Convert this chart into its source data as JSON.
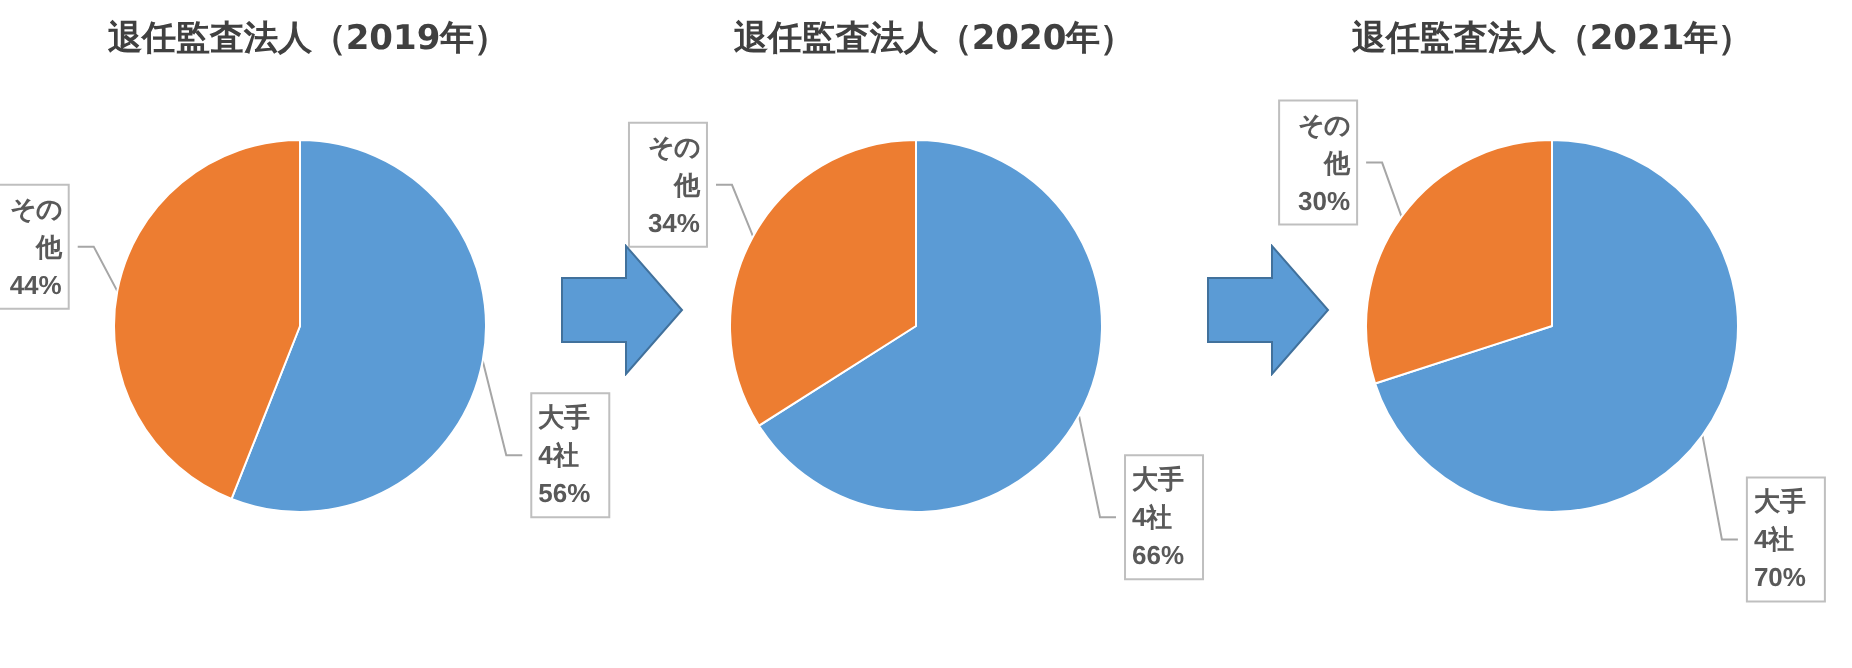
{
  "chart_data": [
    {
      "type": "pie",
      "title": "退任監査法人（2019年）",
      "categories": [
        "大手4社",
        "その他"
      ],
      "values": [
        56,
        44
      ],
      "colors": [
        "#5b9bd5",
        "#ed7d31"
      ],
      "value_labels": [
        "56%",
        "44%"
      ]
    },
    {
      "type": "pie",
      "title": "退任監査法人（2020年）",
      "categories": [
        "大手4社",
        "その他"
      ],
      "values": [
        66,
        34
      ],
      "colors": [
        "#5b9bd5",
        "#ed7d31"
      ],
      "value_labels": [
        "66%",
        "34%"
      ]
    },
    {
      "type": "pie",
      "title": "退任監査法人（2021年）",
      "categories": [
        "大手4社",
        "その他"
      ],
      "values": [
        70,
        30
      ],
      "colors": [
        "#5b9bd5",
        "#ed7d31"
      ],
      "value_labels": [
        "70%",
        "30%"
      ]
    }
  ]
}
